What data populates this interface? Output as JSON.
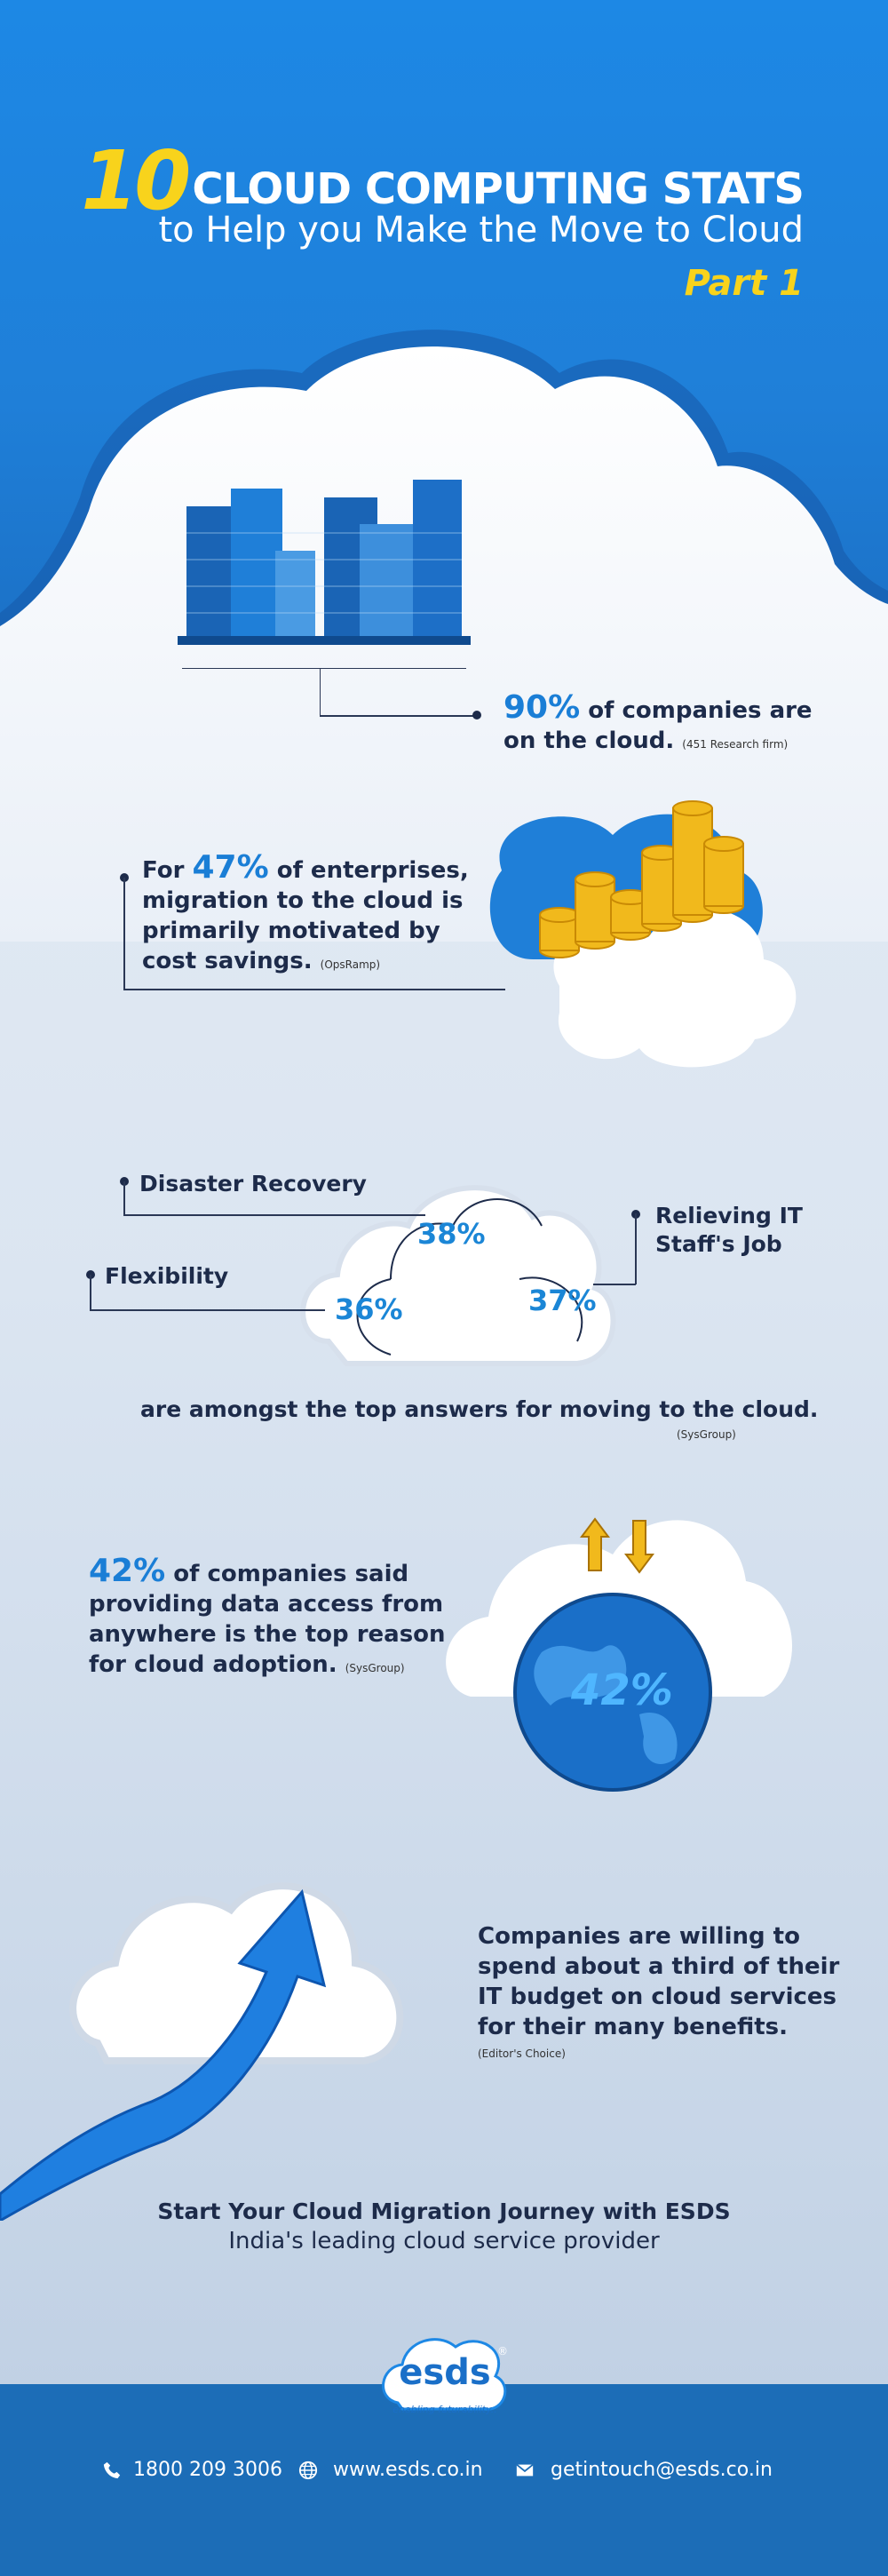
{
  "header": {
    "number": "10",
    "title": "CLOUD COMPUTING STATS",
    "subtitle": "to Help you Make the Move to Cloud",
    "part": "Part 1"
  },
  "stat1": {
    "num": "90%",
    "line1": "of companies are",
    "line2": "on the cloud.",
    "source": "(451 Research firm)"
  },
  "stat2": {
    "prefix": "For",
    "num": "47%",
    "line1": "of enterprises,",
    "line2": "migration to the cloud is",
    "line3": "primarily motivated by",
    "line4": "cost savings.",
    "source": "(OpsRamp)"
  },
  "stat3": {
    "disaster": "Disaster Recovery",
    "disaster_pct": "38%",
    "flex": "Flexibility",
    "flex_pct": "36%",
    "relieving1": "Relieving IT",
    "relieving2": "Staff's Job",
    "relieving_pct": "37%",
    "caption": "are amongst the top answers for moving to the cloud.",
    "source": "(SysGroup)"
  },
  "stat4": {
    "num": "42%",
    "line1": "of companies said",
    "line2": "providing data access from",
    "line3": "anywhere is the top reason",
    "line4": "for cloud adoption.",
    "source": "(SysGroup)",
    "globe": "42%"
  },
  "stat5": {
    "line1": "Companies are willing to",
    "line2": "spend about a third of their",
    "line3": "IT budget on cloud services",
    "line4": "for their many benefits.",
    "source": "(Editor's Choice)"
  },
  "cta": {
    "line1": "Start Your Cloud Migration Journey with ESDS",
    "line2": "India's leading cloud service provider"
  },
  "logo": {
    "name": "esds",
    "tagline": "enabling futurability..",
    "reg": "®"
  },
  "footer": {
    "phone": "1800 209 3006",
    "web": "www.esds.co.in",
    "email": "getintouch@esds.co.in"
  },
  "colors": {
    "brand_blue": "#1d88e5",
    "accent_yellow": "#f8d31c",
    "stat_blue": "#1a7ed6",
    "footer_blue": "#1c6db7"
  },
  "icons": [
    "phone-icon",
    "globe-icon",
    "mail-icon"
  ]
}
